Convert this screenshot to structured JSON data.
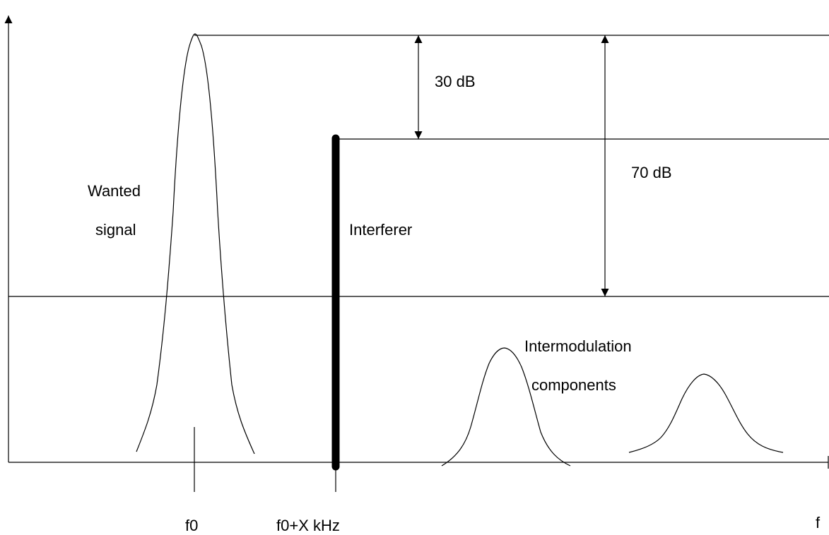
{
  "labels": {
    "wanted_line1": "Wanted",
    "wanted_line2": "signal",
    "interferer": "Interferer",
    "db30": "30 dB",
    "db70": "70 dB",
    "imd_line1": "Intermodulation",
    "imd_line2": "components",
    "f0": "f0",
    "f0x": "f0+X kHz",
    "f_axis": "f"
  },
  "colors": {
    "line": "#000000",
    "background": "#ffffff"
  },
  "icons": {
    "arrowheads": "filled-triangle-arrowhead"
  }
}
